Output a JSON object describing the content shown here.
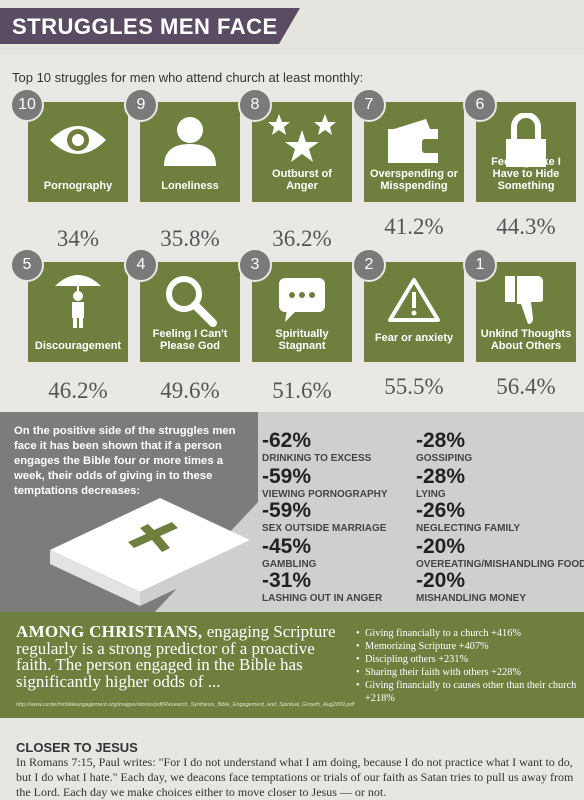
{
  "header": {
    "title": "STRUGGLES MEN FACE"
  },
  "subtitle": "Top 10 struggles for men who attend church at least monthly:",
  "struggles": [
    {
      "rank": "10",
      "label": "Pornography",
      "percent": "34%",
      "icon": "eye-icon"
    },
    {
      "rank": "9",
      "label": "Loneliness",
      "percent": "35.8%",
      "icon": "person-icon"
    },
    {
      "rank": "8",
      "label": "Outburst of Anger",
      "percent": "36.2%",
      "icon": "stars-icon"
    },
    {
      "rank": "7",
      "label": "Overspending or Misspending",
      "percent": "41.2%",
      "icon": "wallet-icon"
    },
    {
      "rank": "6",
      "label": "Feeling Like I Have to Hide Something",
      "percent": "44.3%",
      "icon": "lock-icon"
    },
    {
      "rank": "5",
      "label": "Discouragement",
      "percent": "46.2%",
      "icon": "umbrella-person-icon"
    },
    {
      "rank": "4",
      "label": "Feeling I Can't Please God",
      "percent": "49.6%",
      "icon": "magnifier-icon"
    },
    {
      "rank": "3",
      "label": "Spiritually Stagnant",
      "percent": "51.6%",
      "icon": "speech-bubble-icon"
    },
    {
      "rank": "2",
      "label": "Fear or anxiety",
      "percent": "55.5%",
      "icon": "warning-icon"
    },
    {
      "rank": "1",
      "label": "Unkind Thoughts About Others",
      "percent": "56.4%",
      "icon": "thumbs-down-icon"
    }
  ],
  "bible_section": {
    "text": "On the positive side of the struggles men face it has been shown that if a person engages the Bible four or more times a week, their odds of giving in to these temptations decreases:",
    "left_stats": [
      {
        "value": "-62%",
        "label": "DRINKING TO EXCESS"
      },
      {
        "value": "-59%",
        "label": "VIEWING PORNOGRAPHY"
      },
      {
        "value": "-59%",
        "label": "SEX OUTSIDE MARRIAGE"
      },
      {
        "value": "-45%",
        "label": "GAMBLING"
      },
      {
        "value": "-31%",
        "label": "LASHING OUT IN ANGER"
      }
    ],
    "right_stats": [
      {
        "value": "-28%",
        "label": "GOSSIPING"
      },
      {
        "value": "-28%",
        "label": "LYING"
      },
      {
        "value": "-26%",
        "label": "NEGLECTING FAMILY"
      },
      {
        "value": "-20%",
        "label": "OVEREATING/MISHANDLING FOOD"
      },
      {
        "value": "-20%",
        "label": "MISHANDLING MONEY"
      }
    ]
  },
  "christians": {
    "heading": "AMONG CHRISTIANS,",
    "body": "engaging Scripture regularly is a strong predictor of a proactive faith. The person engaged in the Bible has significantly higher odds of ...",
    "source": "http://www.centerforbibleengagement.org/images/stories/pdf/Research_Synthesis_Bible_Engagement_and_Spiritual_Growth_Aug2009.pdf",
    "bullets": [
      "Giving financially to a church +416%",
      "Memorizing Scripture +407%",
      "Discipling others +231%",
      "Sharing their faith with others +228%",
      "Giving financially to causes other than their church +218%"
    ]
  },
  "closer": {
    "heading": "CLOSER TO JESUS",
    "text": "In Romans 7:15, Paul writes: \"For I do not understand what I am doing, because I do not practice what I want to do, but I do what I hate.\" Each day, we deacons face temptations or trials of our faith as Satan tries to pull us away from the Lord. Each day we make choices either to move closer to Jesus — or not."
  },
  "colors": {
    "green": "#6e7f3e",
    "purple": "#5a4c62",
    "gray": "#7d7c7b"
  }
}
